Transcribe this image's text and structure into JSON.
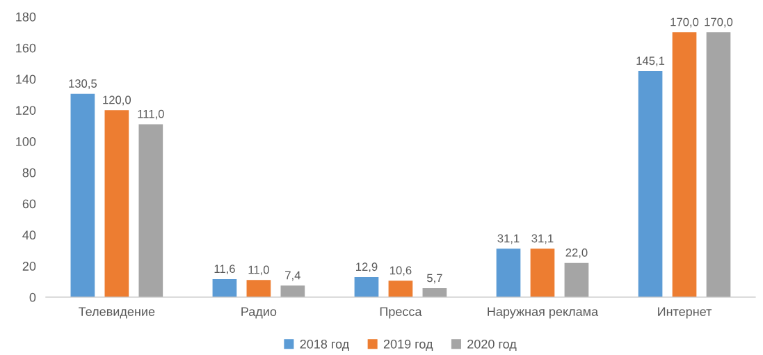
{
  "chart_data": {
    "type": "bar",
    "categories": [
      "Телевидение",
      "Радио",
      "Пресса",
      "Наружная реклама",
      "Интернет"
    ],
    "series": [
      {
        "name": "2018 год",
        "color": "#5b9bd5",
        "values": [
          130.5,
          11.6,
          12.9,
          31.1,
          145.1
        ],
        "value_labels": [
          "130,5",
          "11,6",
          "12,9",
          "31,1",
          "145,1"
        ]
      },
      {
        "name": "2019 год",
        "color": "#ed7d31",
        "values": [
          120.0,
          11.0,
          10.6,
          31.1,
          170.0
        ],
        "value_labels": [
          "120,0",
          "11,0",
          "10,6",
          "31,1",
          "170,0"
        ]
      },
      {
        "name": "2020 год",
        "color": "#a5a5a5",
        "values": [
          111.0,
          7.4,
          5.7,
          22.0,
          170.0
        ],
        "value_labels": [
          "111,0",
          "7,4",
          "5,7",
          "22,0",
          "170,0"
        ]
      }
    ],
    "ylim": [
      0,
      180
    ],
    "yticks": [
      0,
      20,
      40,
      60,
      80,
      100,
      120,
      140,
      160,
      180
    ],
    "grid": false,
    "legend": "bottom"
  }
}
